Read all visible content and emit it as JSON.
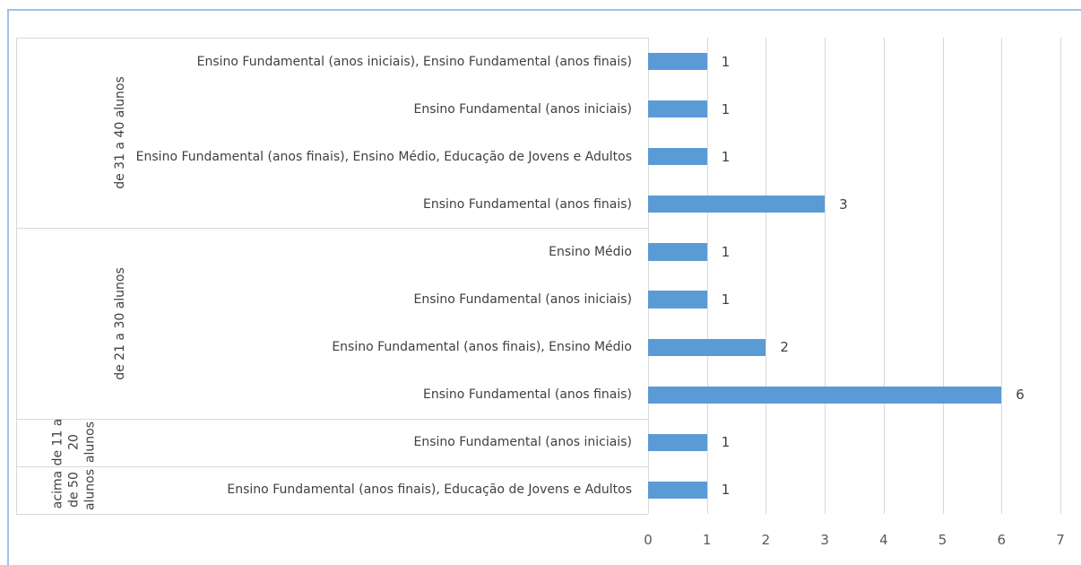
{
  "chart_data": {
    "type": "bar",
    "orientation": "horizontal",
    "color": "#5b9bd5",
    "groups": [
      {
        "name": "de 31 a 40 alunos",
        "categories": [
          "Ensino Fundamental (anos iniciais), Ensino Fundamental (anos finais)",
          "Ensino Fundamental (anos iniciais)",
          "Ensino Fundamental (anos finais), Ensino Médio, Educação de Jovens e Adultos",
          "Ensino Fundamental (anos finais)"
        ],
        "values": [
          1,
          1,
          1,
          3
        ]
      },
      {
        "name": "de 21 a 30 alunos",
        "categories": [
          "Ensino Médio",
          "Ensino Fundamental (anos iniciais)",
          "Ensino Fundamental (anos finais), Ensino Médio",
          "Ensino Fundamental (anos finais)"
        ],
        "values": [
          1,
          1,
          2,
          6
        ]
      },
      {
        "name": "de 11 a 20 alunos",
        "categories": [
          "Ensino Fundamental (anos iniciais)"
        ],
        "values": [
          1
        ]
      },
      {
        "name": "acima de 50 alunos",
        "categories": [
          "Ensino Fundamental (anos finais), Educação de Jovens e Adultos"
        ],
        "values": [
          1
        ]
      }
    ],
    "xlim": [
      0,
      7
    ],
    "xticks": [
      0,
      1,
      2,
      3,
      4,
      5,
      6,
      7
    ],
    "grid": true
  }
}
